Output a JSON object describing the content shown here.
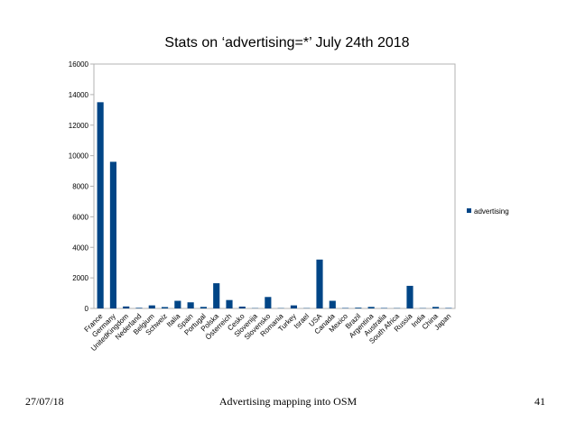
{
  "chart_data": {
    "type": "bar",
    "title": "Stats on ‘advertising=*’ July 24th 2018",
    "xlabel": "",
    "ylabel": "",
    "ylim": [
      0,
      16000
    ],
    "yticks": [
      0,
      2000,
      4000,
      6000,
      8000,
      10000,
      12000,
      14000,
      16000
    ],
    "grid": false,
    "legend": "right",
    "bar_color": "#004586",
    "categories": [
      "France",
      "Germany",
      "UnitedKingdom",
      "Nederland",
      "Belgium",
      "Schweiz",
      "Italia",
      "Spain",
      "Portugal",
      "Polska",
      "Österreich",
      "Cesko",
      "Slovenija",
      "Slovensko",
      "Romania",
      "Turkey",
      "Israel",
      "USA",
      "Canada",
      "Mexico",
      "Brazil",
      "Argentina",
      "Australia",
      "South Africa",
      "Russia",
      "India",
      "China",
      "Japan"
    ],
    "series": [
      {
        "name": "advertising",
        "values": [
          13500,
          9600,
          130,
          40,
          200,
          90,
          500,
          400,
          100,
          1650,
          550,
          120,
          20,
          750,
          20,
          200,
          20,
          3200,
          500,
          30,
          50,
          100,
          30,
          20,
          1480,
          20,
          100,
          30
        ]
      }
    ]
  },
  "footer": {
    "date": "27/07/18",
    "title": "Advertising mapping into OSM",
    "page": "41"
  }
}
